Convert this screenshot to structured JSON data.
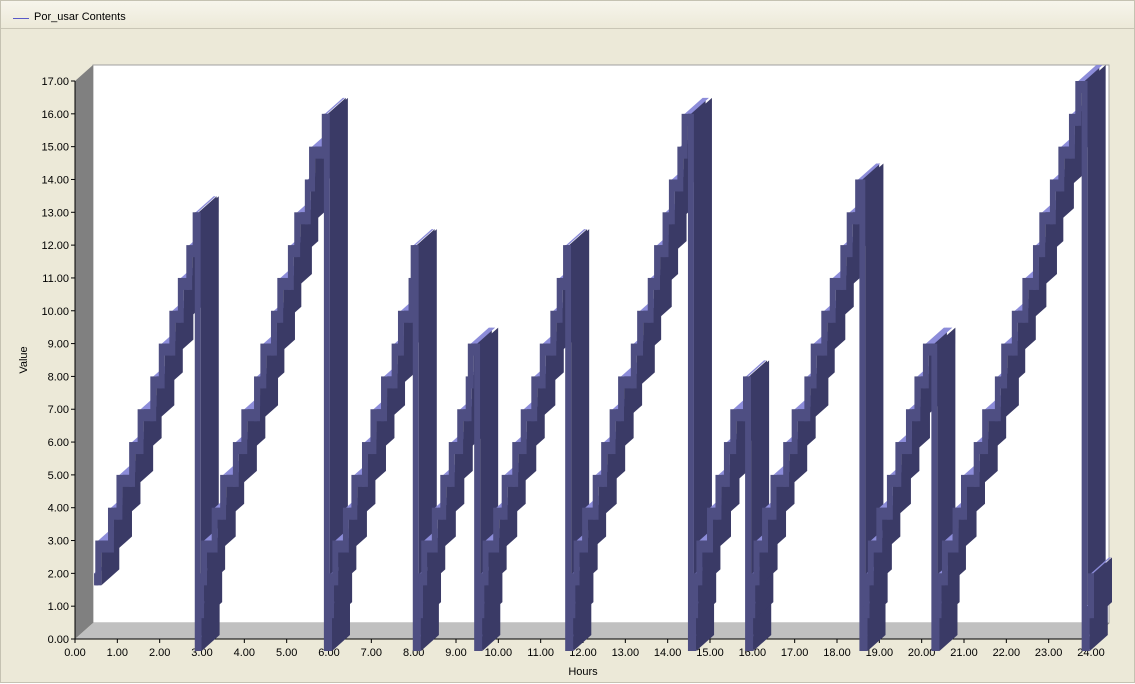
{
  "legend": {
    "label": "Por_usar Contents",
    "color": "#5a5ac8"
  },
  "chart_data": {
    "type": "line",
    "style": "3d-ribbon-step",
    "xlabel": "Hours",
    "ylabel": "Value",
    "xlim": [
      0,
      24
    ],
    "ylim": [
      0,
      17
    ],
    "xticks": [
      "0.00",
      "1.00",
      "2.00",
      "3.00",
      "4.00",
      "5.00",
      "6.00",
      "7.00",
      "8.00",
      "9.00",
      "10.00",
      "11.00",
      "12.00",
      "13.00",
      "14.00",
      "15.00",
      "16.00",
      "17.00",
      "18.00",
      "19.00",
      "20.00",
      "21.00",
      "22.00",
      "23.00",
      "24.00"
    ],
    "yticks": [
      "0.00",
      "1.00",
      "2.00",
      "3.00",
      "4.00",
      "5.00",
      "6.00",
      "7.00",
      "8.00",
      "9.00",
      "10.00",
      "11.00",
      "12.00",
      "13.00",
      "14.00",
      "15.00",
      "16.00",
      "17.00"
    ],
    "grid": false,
    "legend_position": "top-left",
    "colors": {
      "ribbon_front": "#4e4e82",
      "ribbon_top": "#8c8cd9",
      "ribbon_side": "#3a3a66",
      "floor": "#c0c0c0",
      "wall": "#808080",
      "plot_bg": "#ffffff"
    },
    "series": [
      {
        "name": "Por_usar Contents",
        "step_points": [
          [
            0.45,
            2
          ],
          [
            0.55,
            3
          ],
          [
            0.85,
            4
          ],
          [
            1.05,
            5
          ],
          [
            1.35,
            6
          ],
          [
            1.55,
            7
          ],
          [
            1.85,
            8
          ],
          [
            2.05,
            9
          ],
          [
            2.3,
            10
          ],
          [
            2.5,
            11
          ],
          [
            2.7,
            12
          ],
          [
            2.85,
            13
          ],
          [
            2.9,
            0
          ],
          [
            2.92,
            1
          ],
          [
            2.98,
            2
          ],
          [
            3.05,
            3
          ],
          [
            3.3,
            4
          ],
          [
            3.5,
            5
          ],
          [
            3.8,
            6
          ],
          [
            4.0,
            7
          ],
          [
            4.3,
            8
          ],
          [
            4.45,
            9
          ],
          [
            4.7,
            10
          ],
          [
            4.85,
            11
          ],
          [
            5.1,
            12
          ],
          [
            5.25,
            13
          ],
          [
            5.5,
            14
          ],
          [
            5.6,
            15
          ],
          [
            5.9,
            16
          ],
          [
            5.95,
            0
          ],
          [
            6.0,
            1
          ],
          [
            6.05,
            2
          ],
          [
            6.15,
            3
          ],
          [
            6.4,
            4
          ],
          [
            6.6,
            5
          ],
          [
            6.85,
            6
          ],
          [
            7.05,
            7
          ],
          [
            7.3,
            8
          ],
          [
            7.55,
            9
          ],
          [
            7.7,
            10
          ],
          [
            7.95,
            11
          ],
          [
            8.0,
            12
          ],
          [
            8.05,
            0
          ],
          [
            8.1,
            1
          ],
          [
            8.15,
            2
          ],
          [
            8.25,
            3
          ],
          [
            8.5,
            4
          ],
          [
            8.7,
            5
          ],
          [
            8.9,
            6
          ],
          [
            9.1,
            7
          ],
          [
            9.3,
            8
          ],
          [
            9.35,
            9
          ],
          [
            9.5,
            0
          ],
          [
            9.55,
            1
          ],
          [
            9.6,
            2
          ],
          [
            9.7,
            3
          ],
          [
            9.95,
            4
          ],
          [
            10.15,
            5
          ],
          [
            10.4,
            6
          ],
          [
            10.6,
            7
          ],
          [
            10.85,
            8
          ],
          [
            11.05,
            9
          ],
          [
            11.3,
            10
          ],
          [
            11.45,
            11
          ],
          [
            11.6,
            12
          ],
          [
            11.65,
            0
          ],
          [
            11.7,
            1
          ],
          [
            11.75,
            2
          ],
          [
            11.85,
            3
          ],
          [
            12.05,
            4
          ],
          [
            12.3,
            5
          ],
          [
            12.5,
            6
          ],
          [
            12.7,
            7
          ],
          [
            12.9,
            8
          ],
          [
            13.2,
            9
          ],
          [
            13.35,
            10
          ],
          [
            13.6,
            11
          ],
          [
            13.75,
            12
          ],
          [
            13.95,
            13
          ],
          [
            14.1,
            14
          ],
          [
            14.3,
            15
          ],
          [
            14.4,
            16
          ],
          [
            14.55,
            0
          ],
          [
            14.6,
            1
          ],
          [
            14.65,
            2
          ],
          [
            14.75,
            3
          ],
          [
            15.0,
            4
          ],
          [
            15.2,
            5
          ],
          [
            15.4,
            6
          ],
          [
            15.55,
            7
          ],
          [
            15.85,
            8
          ],
          [
            15.9,
            0
          ],
          [
            15.95,
            1
          ],
          [
            16.0,
            2
          ],
          [
            16.1,
            3
          ],
          [
            16.3,
            4
          ],
          [
            16.5,
            5
          ],
          [
            16.8,
            6
          ],
          [
            17.0,
            7
          ],
          [
            17.3,
            8
          ],
          [
            17.45,
            9
          ],
          [
            17.7,
            10
          ],
          [
            17.9,
            11
          ],
          [
            18.15,
            12
          ],
          [
            18.3,
            13
          ],
          [
            18.5,
            14
          ],
          [
            18.6,
            0
          ],
          [
            18.65,
            1
          ],
          [
            18.7,
            2
          ],
          [
            18.8,
            3
          ],
          [
            19.0,
            4
          ],
          [
            19.25,
            5
          ],
          [
            19.45,
            6
          ],
          [
            19.7,
            7
          ],
          [
            19.9,
            8
          ],
          [
            20.1,
            9
          ],
          [
            20.3,
            0
          ],
          [
            20.35,
            1
          ],
          [
            20.4,
            2
          ],
          [
            20.55,
            3
          ],
          [
            20.8,
            4
          ],
          [
            21.0,
            5
          ],
          [
            21.3,
            6
          ],
          [
            21.5,
            7
          ],
          [
            21.8,
            8
          ],
          [
            21.95,
            9
          ],
          [
            22.2,
            10
          ],
          [
            22.45,
            11
          ],
          [
            22.7,
            12
          ],
          [
            22.85,
            13
          ],
          [
            23.1,
            14
          ],
          [
            23.3,
            15
          ],
          [
            23.55,
            16
          ],
          [
            23.7,
            17
          ],
          [
            23.85,
            0
          ],
          [
            23.9,
            1
          ],
          [
            24.0,
            2
          ]
        ]
      }
    ]
  }
}
